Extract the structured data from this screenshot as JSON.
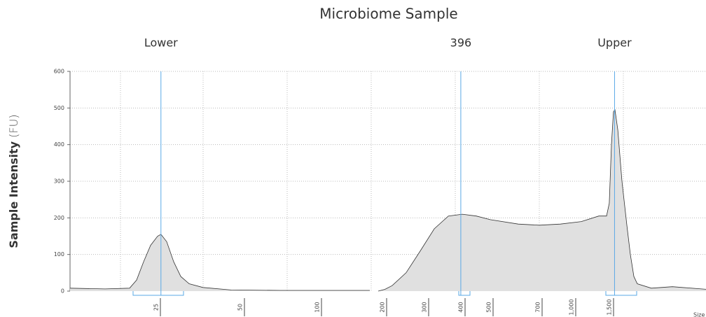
{
  "chart_data": {
    "type": "area",
    "title": "Microbiome Sample",
    "y_label": "Sample Intensity",
    "y_unit": "(FU)",
    "x_label": "Size [bp]",
    "x": [
      15,
      19,
      21.8,
      22.6,
      23.4,
      24.2,
      25,
      26,
      27.7,
      29.8,
      31.9,
      34.4,
      38.5,
      46.9,
      75,
      178.5,
      null,
      191.4,
      203,
      220,
      253,
      287,
      323,
      362,
      400,
      450,
      500,
      614,
      700,
      888,
      1111,
      1343,
      1444,
      1481,
      1507,
      1529,
      1544,
      1574,
      1618,
      1669,
      1706,
      1743,
      1779,
      1926,
      2147,
      2500
    ],
    "values": [
      8,
      6,
      8,
      30,
      80,
      125,
      150,
      155,
      135,
      80,
      40,
      20,
      10,
      3,
      2,
      2,
      null,
      0,
      5,
      15,
      50,
      110,
      170,
      205,
      210,
      205,
      195,
      183,
      180,
      183,
      190,
      205,
      205,
      240,
      400,
      490,
      495,
      440,
      300,
      180,
      100,
      40,
      20,
      8,
      12,
      5
    ],
    "color": "#e0e0e0",
    "line_color": "#333333",
    "markers": [
      {
        "label": "Lower",
        "size": 26
      },
      {
        "label": "396",
        "size": 396
      },
      {
        "label": "Upper",
        "size": 1540
      }
    ],
    "marker_color": "#5aa9e6",
    "xlim": [
      15,
      2500
    ],
    "xticks": [
      25,
      50,
      100,
      200,
      300,
      400,
      500,
      700,
      {
        "value": 1000,
        "label": "1,000"
      },
      {
        "value": 1500,
        "label": "1,500"
      }
    ],
    "ylim": [
      0,
      600
    ],
    "yticks": [
      0,
      100,
      200,
      300,
      400,
      500,
      600
    ],
    "grid": true
  }
}
